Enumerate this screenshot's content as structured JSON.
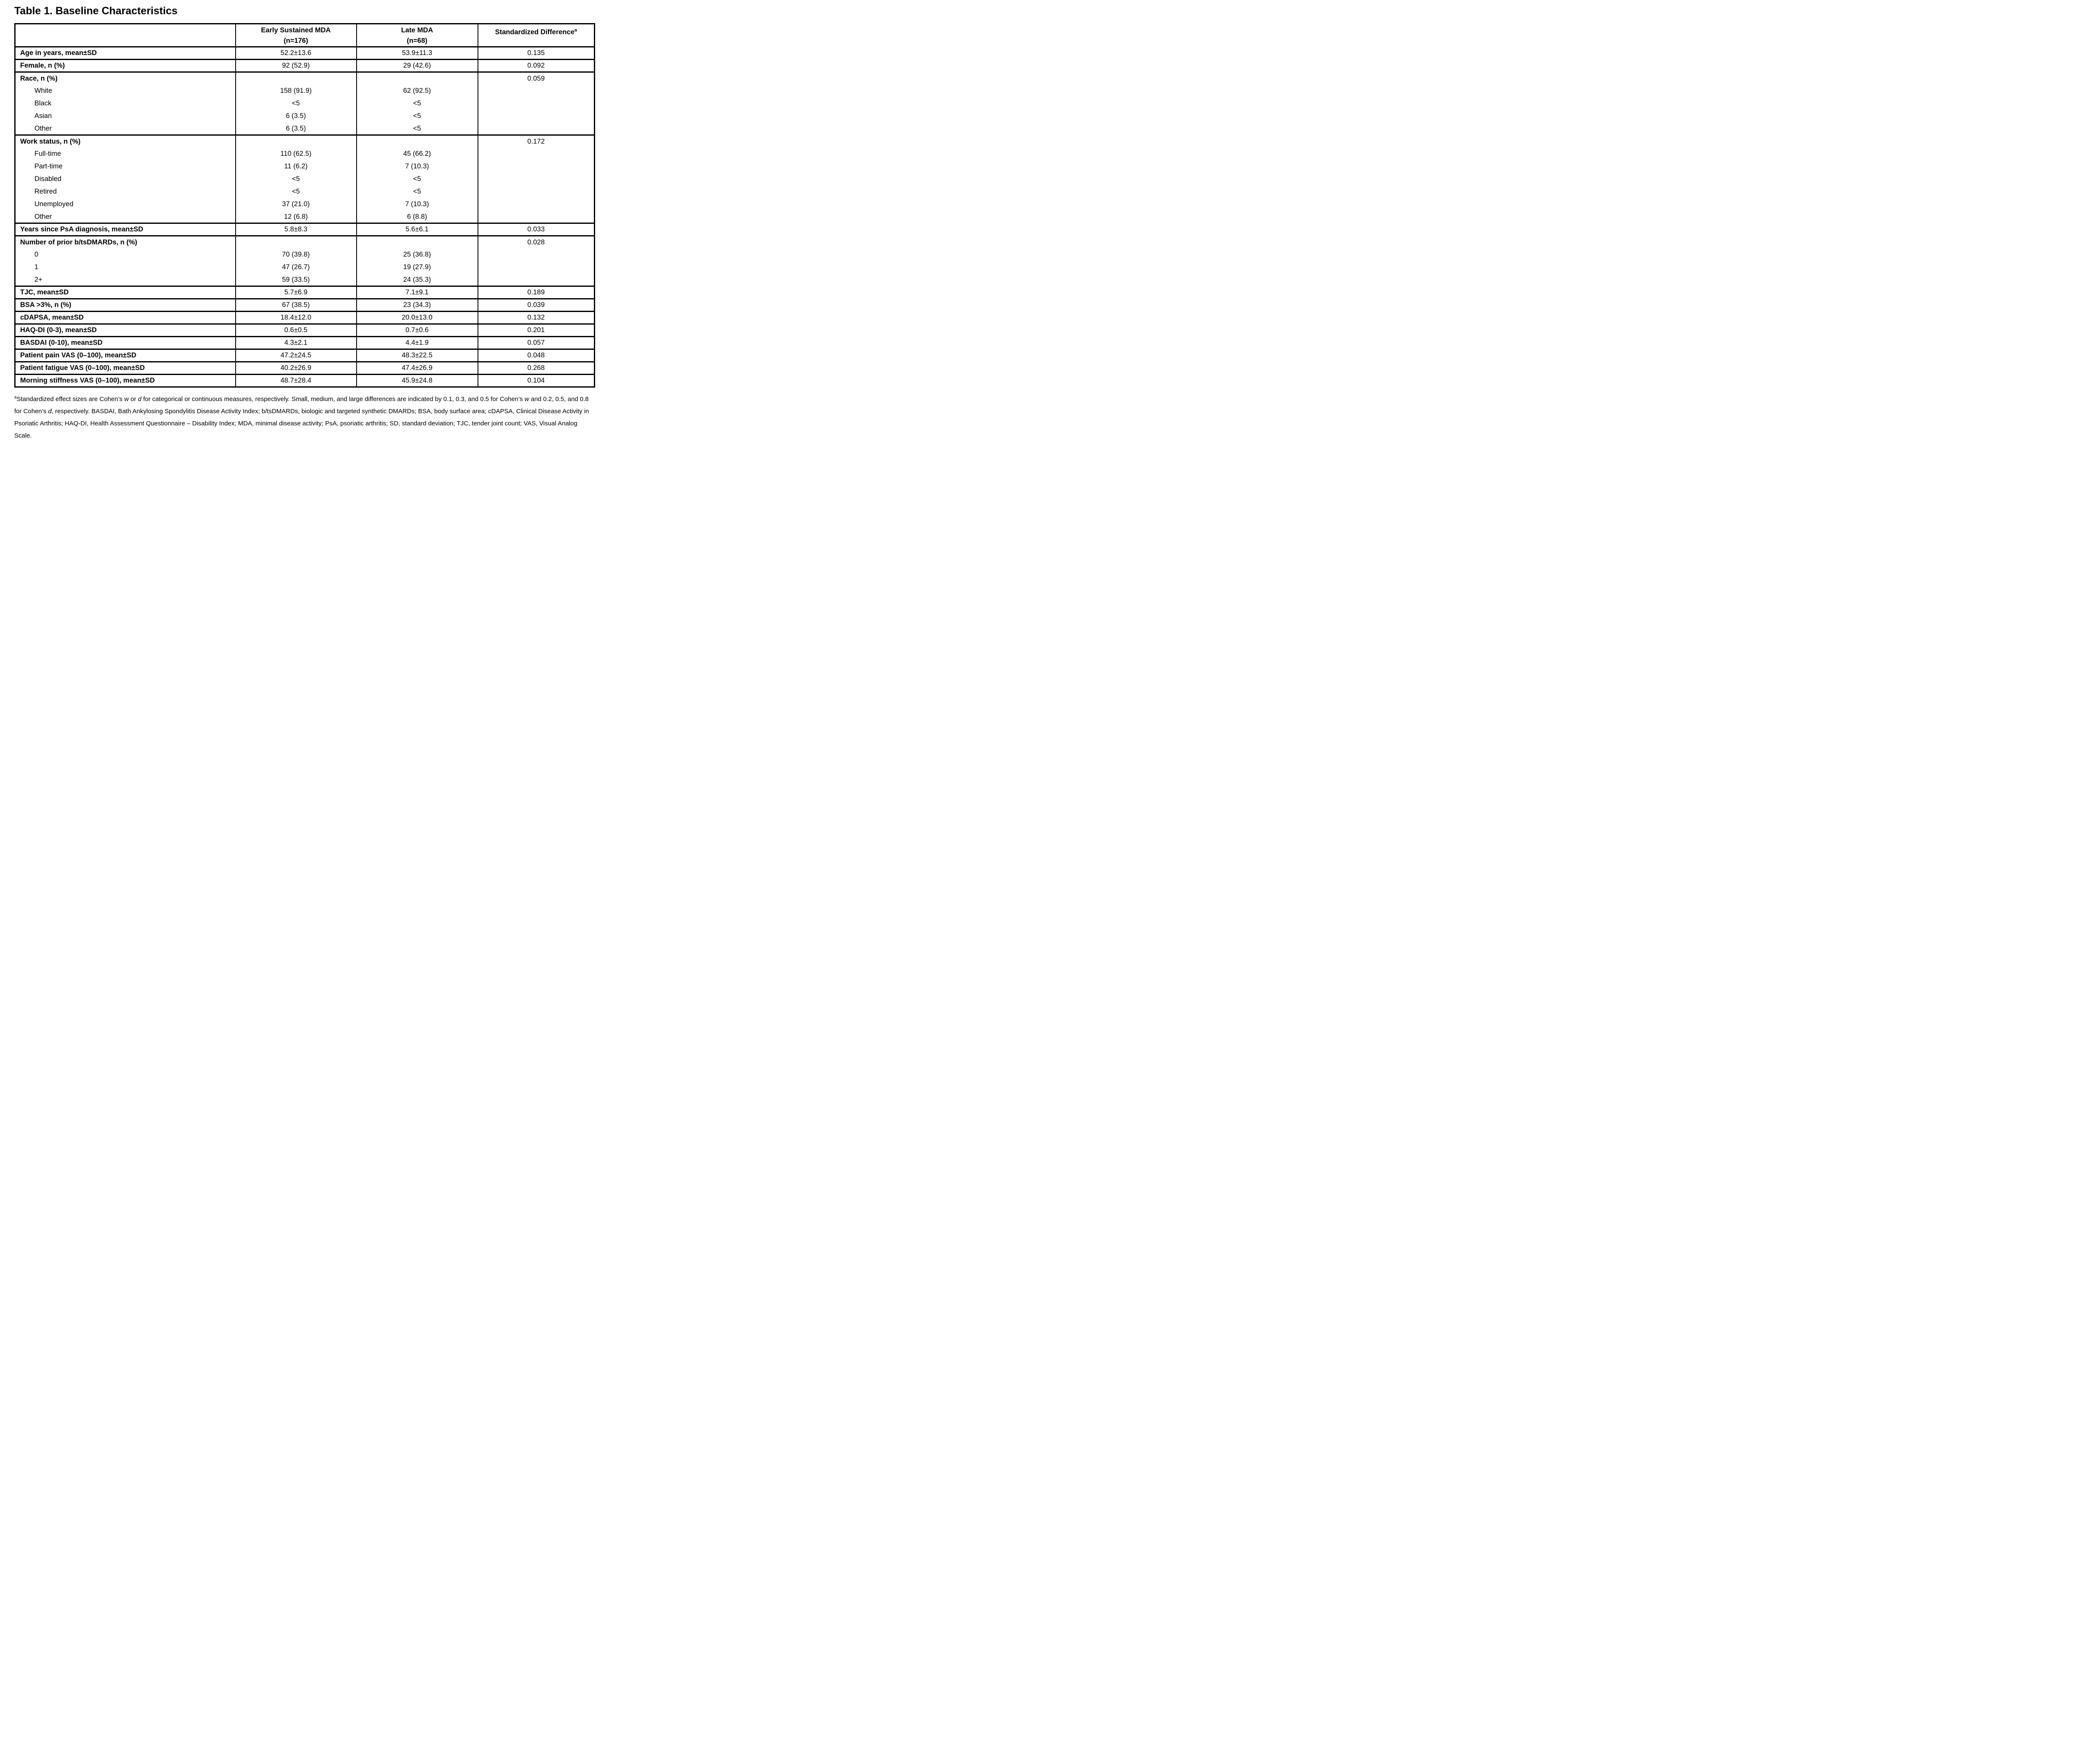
{
  "title": "Table 1. Baseline Characteristics",
  "table": {
    "header": {
      "col1": "",
      "col2_line1": "Early Sustained MDA",
      "col2_line2": "(n=176)",
      "col3_line1": "Late MDA",
      "col3_line2": "(n=68)",
      "col4_line1": "Standardized Difference",
      "col4_sup": "a"
    },
    "rows": [
      {
        "label": "Age in years, mean±SD",
        "early": "52.2±13.6",
        "late": "53.9±11.3",
        "std": "0.135",
        "indent": false,
        "group": true
      },
      {
        "label": "Female, n (%)",
        "early": "92 (52.9)",
        "late": "29 (42.6)",
        "std": "0.092",
        "indent": false,
        "group": true
      },
      {
        "label": "Race, n (%)",
        "early": "",
        "late": "",
        "std": "0.059",
        "indent": false,
        "group": true
      },
      {
        "label": "White",
        "early": "158 (91.9)",
        "late": "62 (92.5)",
        "std": "",
        "indent": true,
        "group": false
      },
      {
        "label": "Black",
        "early": "<5",
        "late": "<5",
        "std": "",
        "indent": true,
        "group": false
      },
      {
        "label": "Asian",
        "early": "6 (3.5)",
        "late": "<5",
        "std": "",
        "indent": true,
        "group": false
      },
      {
        "label": "Other",
        "early": "6 (3.5)",
        "late": "<5",
        "std": "",
        "indent": true,
        "group": false
      },
      {
        "label": "Work status, n (%)",
        "early": "",
        "late": "",
        "std": "0.172",
        "indent": false,
        "group": true
      },
      {
        "label": "Full-time",
        "early": "110 (62.5)",
        "late": "45 (66.2)",
        "std": "",
        "indent": true,
        "group": false
      },
      {
        "label": "Part-time",
        "early": "11 (6.2)",
        "late": "7 (10.3)",
        "std": "",
        "indent": true,
        "group": false
      },
      {
        "label": "Disabled",
        "early": "<5",
        "late": "<5",
        "std": "",
        "indent": true,
        "group": false
      },
      {
        "label": "Retired",
        "early": "<5",
        "late": "<5",
        "std": "",
        "indent": true,
        "group": false
      },
      {
        "label": "Unemployed",
        "early": "37 (21.0)",
        "late": "7 (10.3)",
        "std": "",
        "indent": true,
        "group": false
      },
      {
        "label": "Other",
        "early": "12 (6.8)",
        "late": "6 (8.8)",
        "std": "",
        "indent": true,
        "group": false
      },
      {
        "label": "Years since PsA diagnosis, mean±SD",
        "early": "5.8±8.3",
        "late": "5.6±6.1",
        "std": "0.033",
        "indent": false,
        "group": true
      },
      {
        "label": "Number of prior b/tsDMARDs, n (%)",
        "early": "",
        "late": "",
        "std": "0.028",
        "indent": false,
        "group": true
      },
      {
        "label": "0",
        "early": "70 (39.8)",
        "late": "25 (36.8)",
        "std": "",
        "indent": true,
        "group": false
      },
      {
        "label": "1",
        "early": "47 (26.7)",
        "late": "19 (27.9)",
        "std": "",
        "indent": true,
        "group": false
      },
      {
        "label": "2+",
        "early": "59 (33.5)",
        "late": "24 (35.3)",
        "std": "",
        "indent": true,
        "group": false
      },
      {
        "label": "TJC, mean±SD",
        "early": "5.7±6.9",
        "late": "7.1±9.1",
        "std": "0.189",
        "indent": false,
        "group": true
      },
      {
        "label": "BSA >3%, n (%)",
        "early": "67 (38.5)",
        "late": "23 (34.3)",
        "std": "0.039",
        "indent": false,
        "group": true
      },
      {
        "label": "cDAPSA, mean±SD",
        "early": "18.4±12.0",
        "late": "20.0±13.0",
        "std": "0.132",
        "indent": false,
        "group": true
      },
      {
        "label": "HAQ-DI (0-3), mean±SD",
        "early": "0.6±0.5",
        "late": "0.7±0.6",
        "std": "0.201",
        "indent": false,
        "group": true
      },
      {
        "label": "BASDAI (0-10), mean±SD",
        "early": "4.3±2.1",
        "late": "4.4±1.9",
        "std": "0.057",
        "indent": false,
        "group": true
      },
      {
        "label": "Patient pain VAS (0–100), mean±SD",
        "early": "47.2±24.5",
        "late": "48.3±22.5",
        "std": "0.048",
        "indent": false,
        "group": true
      },
      {
        "label": "Patient fatigue VAS (0–100), mean±SD",
        "early": "40.2±26.9",
        "late": "47.4±26.9",
        "std": "0.268",
        "indent": false,
        "group": true
      },
      {
        "label": "Morning stiffness VAS (0–100), mean±SD",
        "early": "48.7±28.4",
        "late": "45.9±24.8",
        "std": "0.104",
        "indent": false,
        "group": true
      }
    ]
  },
  "footnote_segments": [
    {
      "t": "a",
      "sup": true
    },
    {
      "t": "Standardized effect sizes are Cohen’s "
    },
    {
      "t": "w",
      "i": true
    },
    {
      "t": " or "
    },
    {
      "t": "d",
      "i": true
    },
    {
      "t": " for categorical or continuous measures, respectively. Small, medium, and large differences are indicated by 0.1, 0.3, and 0.5 for Cohen’s "
    },
    {
      "t": "w",
      "i": true
    },
    {
      "t": " and 0.2, 0.5, and 0.8 for Cohen’s "
    },
    {
      "t": "d",
      "i": true
    },
    {
      "t": ", respectively. BASDAI, Bath Ankylosing Spondylitis Disease Activity Index; b/tsDMARDs, biologic and targeted synthetic DMARDs; BSA, body surface area; cDAPSA, Clinical Disease Activity in Psoriatic Arthritis; HAQ-DI, Health Assessment Questionnaire – Disability Index; MDA, minimal disease activity; PsA, psoriatic arthritis; SD, standard deviation; TJC, tender joint count; VAS, Visual Analog Scale."
    }
  ]
}
